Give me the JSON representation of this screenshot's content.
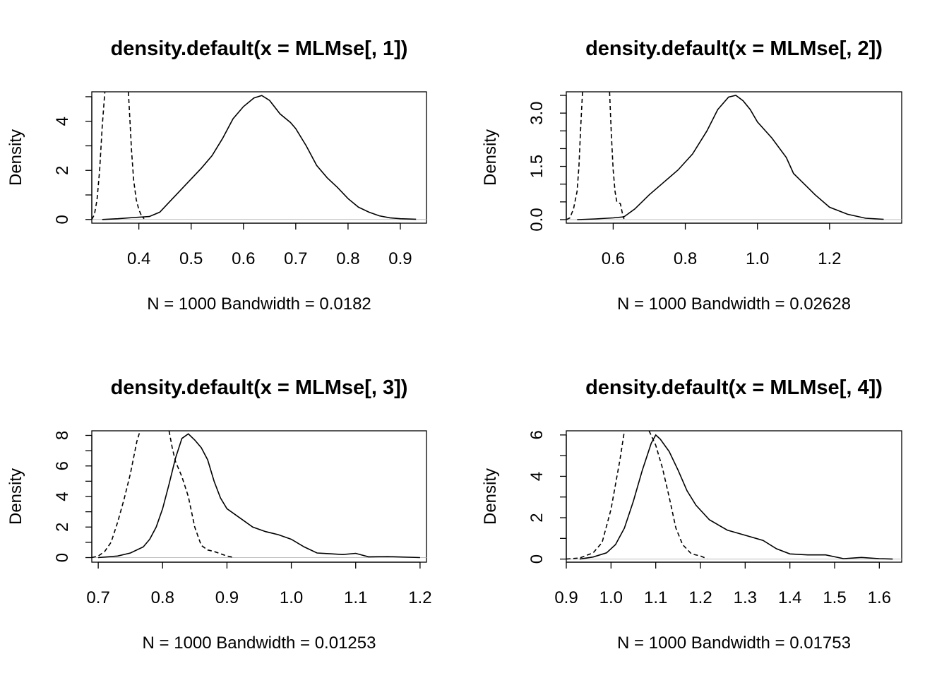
{
  "chart_data": [
    {
      "type": "line",
      "title": "density.default(x = MLMse[, 1])",
      "xlabel": "N = 1000   Bandwidth = 0.0182",
      "ylabel": "Density",
      "xlim": [
        0.31,
        0.95
      ],
      "ylim": [
        -0.15,
        5.2
      ],
      "xticks": [
        0.4,
        0.5,
        0.6,
        0.7,
        0.8,
        0.9
      ],
      "yticks": [
        0,
        1,
        2,
        3,
        4,
        5
      ],
      "ytick_labels": [
        "0",
        "",
        "2",
        "",
        "4",
        ""
      ],
      "series": [
        {
          "style": "solid",
          "x": [
            0.33,
            0.36,
            0.39,
            0.42,
            0.44,
            0.46,
            0.48,
            0.5,
            0.52,
            0.54,
            0.56,
            0.58,
            0.6,
            0.62,
            0.635,
            0.65,
            0.67,
            0.69,
            0.7,
            0.72,
            0.74,
            0.76,
            0.78,
            0.8,
            0.82,
            0.84,
            0.86,
            0.88,
            0.9,
            0.93
          ],
          "y": [
            0.0,
            0.03,
            0.08,
            0.12,
            0.3,
            0.75,
            1.2,
            1.65,
            2.1,
            2.6,
            3.3,
            4.1,
            4.6,
            4.95,
            5.05,
            4.85,
            4.3,
            3.95,
            3.7,
            3.0,
            2.2,
            1.7,
            1.3,
            0.85,
            0.5,
            0.3,
            0.15,
            0.07,
            0.03,
            0.01
          ]
        },
        {
          "style": "dash",
          "x": [
            0.31,
            0.315,
            0.32,
            0.325,
            0.33,
            0.335
          ],
          "y": [
            0.0,
            0.2,
            0.8,
            2.0,
            3.8,
            5.2
          ]
        },
        {
          "style": "dash",
          "x": [
            0.38,
            0.383,
            0.386,
            0.39,
            0.395,
            0.4,
            0.405,
            0.41
          ],
          "y": [
            5.2,
            4.0,
            2.8,
            1.6,
            0.8,
            0.4,
            0.15,
            0.03
          ]
        }
      ]
    },
    {
      "type": "line",
      "title": "density.default(x = MLMse[, 2])",
      "xlabel": "N = 1000   Bandwidth = 0.02628",
      "ylabel": "Density",
      "xlim": [
        0.47,
        1.4
      ],
      "ylim": [
        -0.1,
        3.6
      ],
      "xticks": [
        0.6,
        0.8,
        1.0,
        1.2
      ],
      "xtick_labels": [
        "0.6",
        "0.8",
        "1.0",
        "1.2"
      ],
      "yticks": [
        0,
        0.5,
        1,
        1.5,
        2,
        2.5,
        3,
        3.5
      ],
      "ytick_labels": [
        "0.0",
        "",
        "",
        "1.5",
        "",
        "",
        "3.0",
        ""
      ],
      "series": [
        {
          "style": "solid",
          "x": [
            0.5,
            0.55,
            0.6,
            0.63,
            0.66,
            0.7,
            0.74,
            0.78,
            0.82,
            0.86,
            0.89,
            0.92,
            0.94,
            0.96,
            0.98,
            1.0,
            1.04,
            1.08,
            1.1,
            1.13,
            1.16,
            1.2,
            1.25,
            1.3,
            1.35
          ],
          "y": [
            0.0,
            0.02,
            0.05,
            0.08,
            0.3,
            0.7,
            1.05,
            1.4,
            1.85,
            2.5,
            3.1,
            3.45,
            3.5,
            3.35,
            3.1,
            2.75,
            2.3,
            1.75,
            1.3,
            1.0,
            0.7,
            0.35,
            0.15,
            0.04,
            0.01
          ]
        },
        {
          "style": "dash",
          "x": [
            0.47,
            0.48,
            0.49,
            0.5,
            0.505,
            0.51,
            0.515
          ],
          "y": [
            0.0,
            0.05,
            0.3,
            0.8,
            1.5,
            2.6,
            3.6
          ]
        },
        {
          "style": "dash",
          "x": [
            0.59,
            0.595,
            0.6,
            0.605,
            0.61,
            0.62,
            0.625,
            0.63
          ],
          "y": [
            3.6,
            2.4,
            1.4,
            0.8,
            0.5,
            0.45,
            0.2,
            0.02
          ]
        }
      ]
    },
    {
      "type": "line",
      "title": "density.default(x = MLMse[, 3])",
      "xlabel": "N = 1000   Bandwidth = 0.01253",
      "ylabel": "Density",
      "xlim": [
        0.69,
        1.21
      ],
      "ylim": [
        -0.3,
        8.3
      ],
      "xticks": [
        0.7,
        0.8,
        0.9,
        1.0,
        1.1,
        1.2
      ],
      "xtick_labels": [
        "0.7",
        "0.8",
        "0.9",
        "1.0",
        "1.1",
        "1.2"
      ],
      "yticks": [
        0,
        1,
        2,
        3,
        4,
        5,
        6,
        7,
        8
      ],
      "ytick_labels": [
        "0",
        "",
        "2",
        "",
        "4",
        "",
        "6",
        "",
        "8"
      ],
      "series": [
        {
          "style": "solid",
          "x": [
            0.7,
            0.73,
            0.75,
            0.77,
            0.78,
            0.79,
            0.8,
            0.81,
            0.82,
            0.83,
            0.84,
            0.85,
            0.86,
            0.87,
            0.88,
            0.89,
            0.9,
            0.92,
            0.94,
            0.96,
            0.98,
            1.0,
            1.02,
            1.04,
            1.06,
            1.08,
            1.1,
            1.12,
            1.15,
            1.2
          ],
          "y": [
            0.0,
            0.1,
            0.3,
            0.7,
            1.2,
            2.0,
            3.2,
            4.8,
            6.5,
            7.8,
            8.1,
            7.7,
            7.2,
            6.4,
            5.0,
            3.9,
            3.2,
            2.6,
            2.0,
            1.7,
            1.5,
            1.2,
            0.7,
            0.3,
            0.25,
            0.2,
            0.28,
            0.05,
            0.07,
            0.0
          ]
        },
        {
          "style": "dash",
          "x": [
            0.69,
            0.7,
            0.71,
            0.72,
            0.73,
            0.74,
            0.75,
            0.76,
            0.765
          ],
          "y": [
            0.0,
            0.1,
            0.4,
            1.0,
            2.3,
            3.8,
            5.5,
            7.6,
            8.3
          ]
        },
        {
          "style": "dash",
          "x": [
            0.81,
            0.815,
            0.82,
            0.83,
            0.84,
            0.85,
            0.86,
            0.87,
            0.88,
            0.9,
            0.91
          ],
          "y": [
            8.3,
            7.2,
            6.3,
            5.3,
            4.0,
            2.0,
            0.8,
            0.5,
            0.4,
            0.1,
            0.02
          ]
        }
      ]
    },
    {
      "type": "line",
      "title": "density.default(x = MLMse[, 4])",
      "xlabel": "N = 1000   Bandwidth = 0.01753",
      "ylabel": "Density",
      "xlim": [
        0.9,
        1.65
      ],
      "ylim": [
        -0.15,
        6.2
      ],
      "xticks": [
        0.9,
        1.0,
        1.1,
        1.2,
        1.3,
        1.4,
        1.5,
        1.6
      ],
      "xtick_labels": [
        "0.9",
        "1.0",
        "1.1",
        "1.2",
        "1.3",
        "1.4",
        "1.5",
        "1.6"
      ],
      "yticks": [
        0,
        1,
        2,
        3,
        4,
        5,
        6
      ],
      "ytick_labels": [
        "0",
        "",
        "2",
        "",
        "4",
        "",
        "6"
      ],
      "series": [
        {
          "style": "solid",
          "x": [
            0.93,
            0.96,
            0.99,
            1.01,
            1.03,
            1.05,
            1.07,
            1.09,
            1.1,
            1.11,
            1.13,
            1.15,
            1.17,
            1.19,
            1.22,
            1.26,
            1.3,
            1.34,
            1.37,
            1.4,
            1.44,
            1.48,
            1.52,
            1.56,
            1.6,
            1.63
          ],
          "y": [
            0.0,
            0.1,
            0.3,
            0.7,
            1.5,
            2.8,
            4.3,
            5.6,
            6.0,
            5.8,
            5.2,
            4.3,
            3.3,
            2.6,
            1.9,
            1.4,
            1.15,
            0.9,
            0.5,
            0.25,
            0.2,
            0.2,
            0.02,
            0.08,
            0.02,
            0.0
          ]
        },
        {
          "style": "dash",
          "x": [
            0.9,
            0.93,
            0.96,
            0.98,
            1.0,
            1.02,
            1.03
          ],
          "y": [
            0.0,
            0.05,
            0.3,
            0.8,
            2.4,
            4.8,
            6.2
          ]
        },
        {
          "style": "dash",
          "x": [
            1.085,
            1.1,
            1.115,
            1.13,
            1.145,
            1.16,
            1.18,
            1.2,
            1.215
          ],
          "y": [
            6.2,
            5.5,
            4.4,
            3.0,
            1.5,
            0.7,
            0.25,
            0.15,
            0.01
          ]
        }
      ]
    }
  ]
}
